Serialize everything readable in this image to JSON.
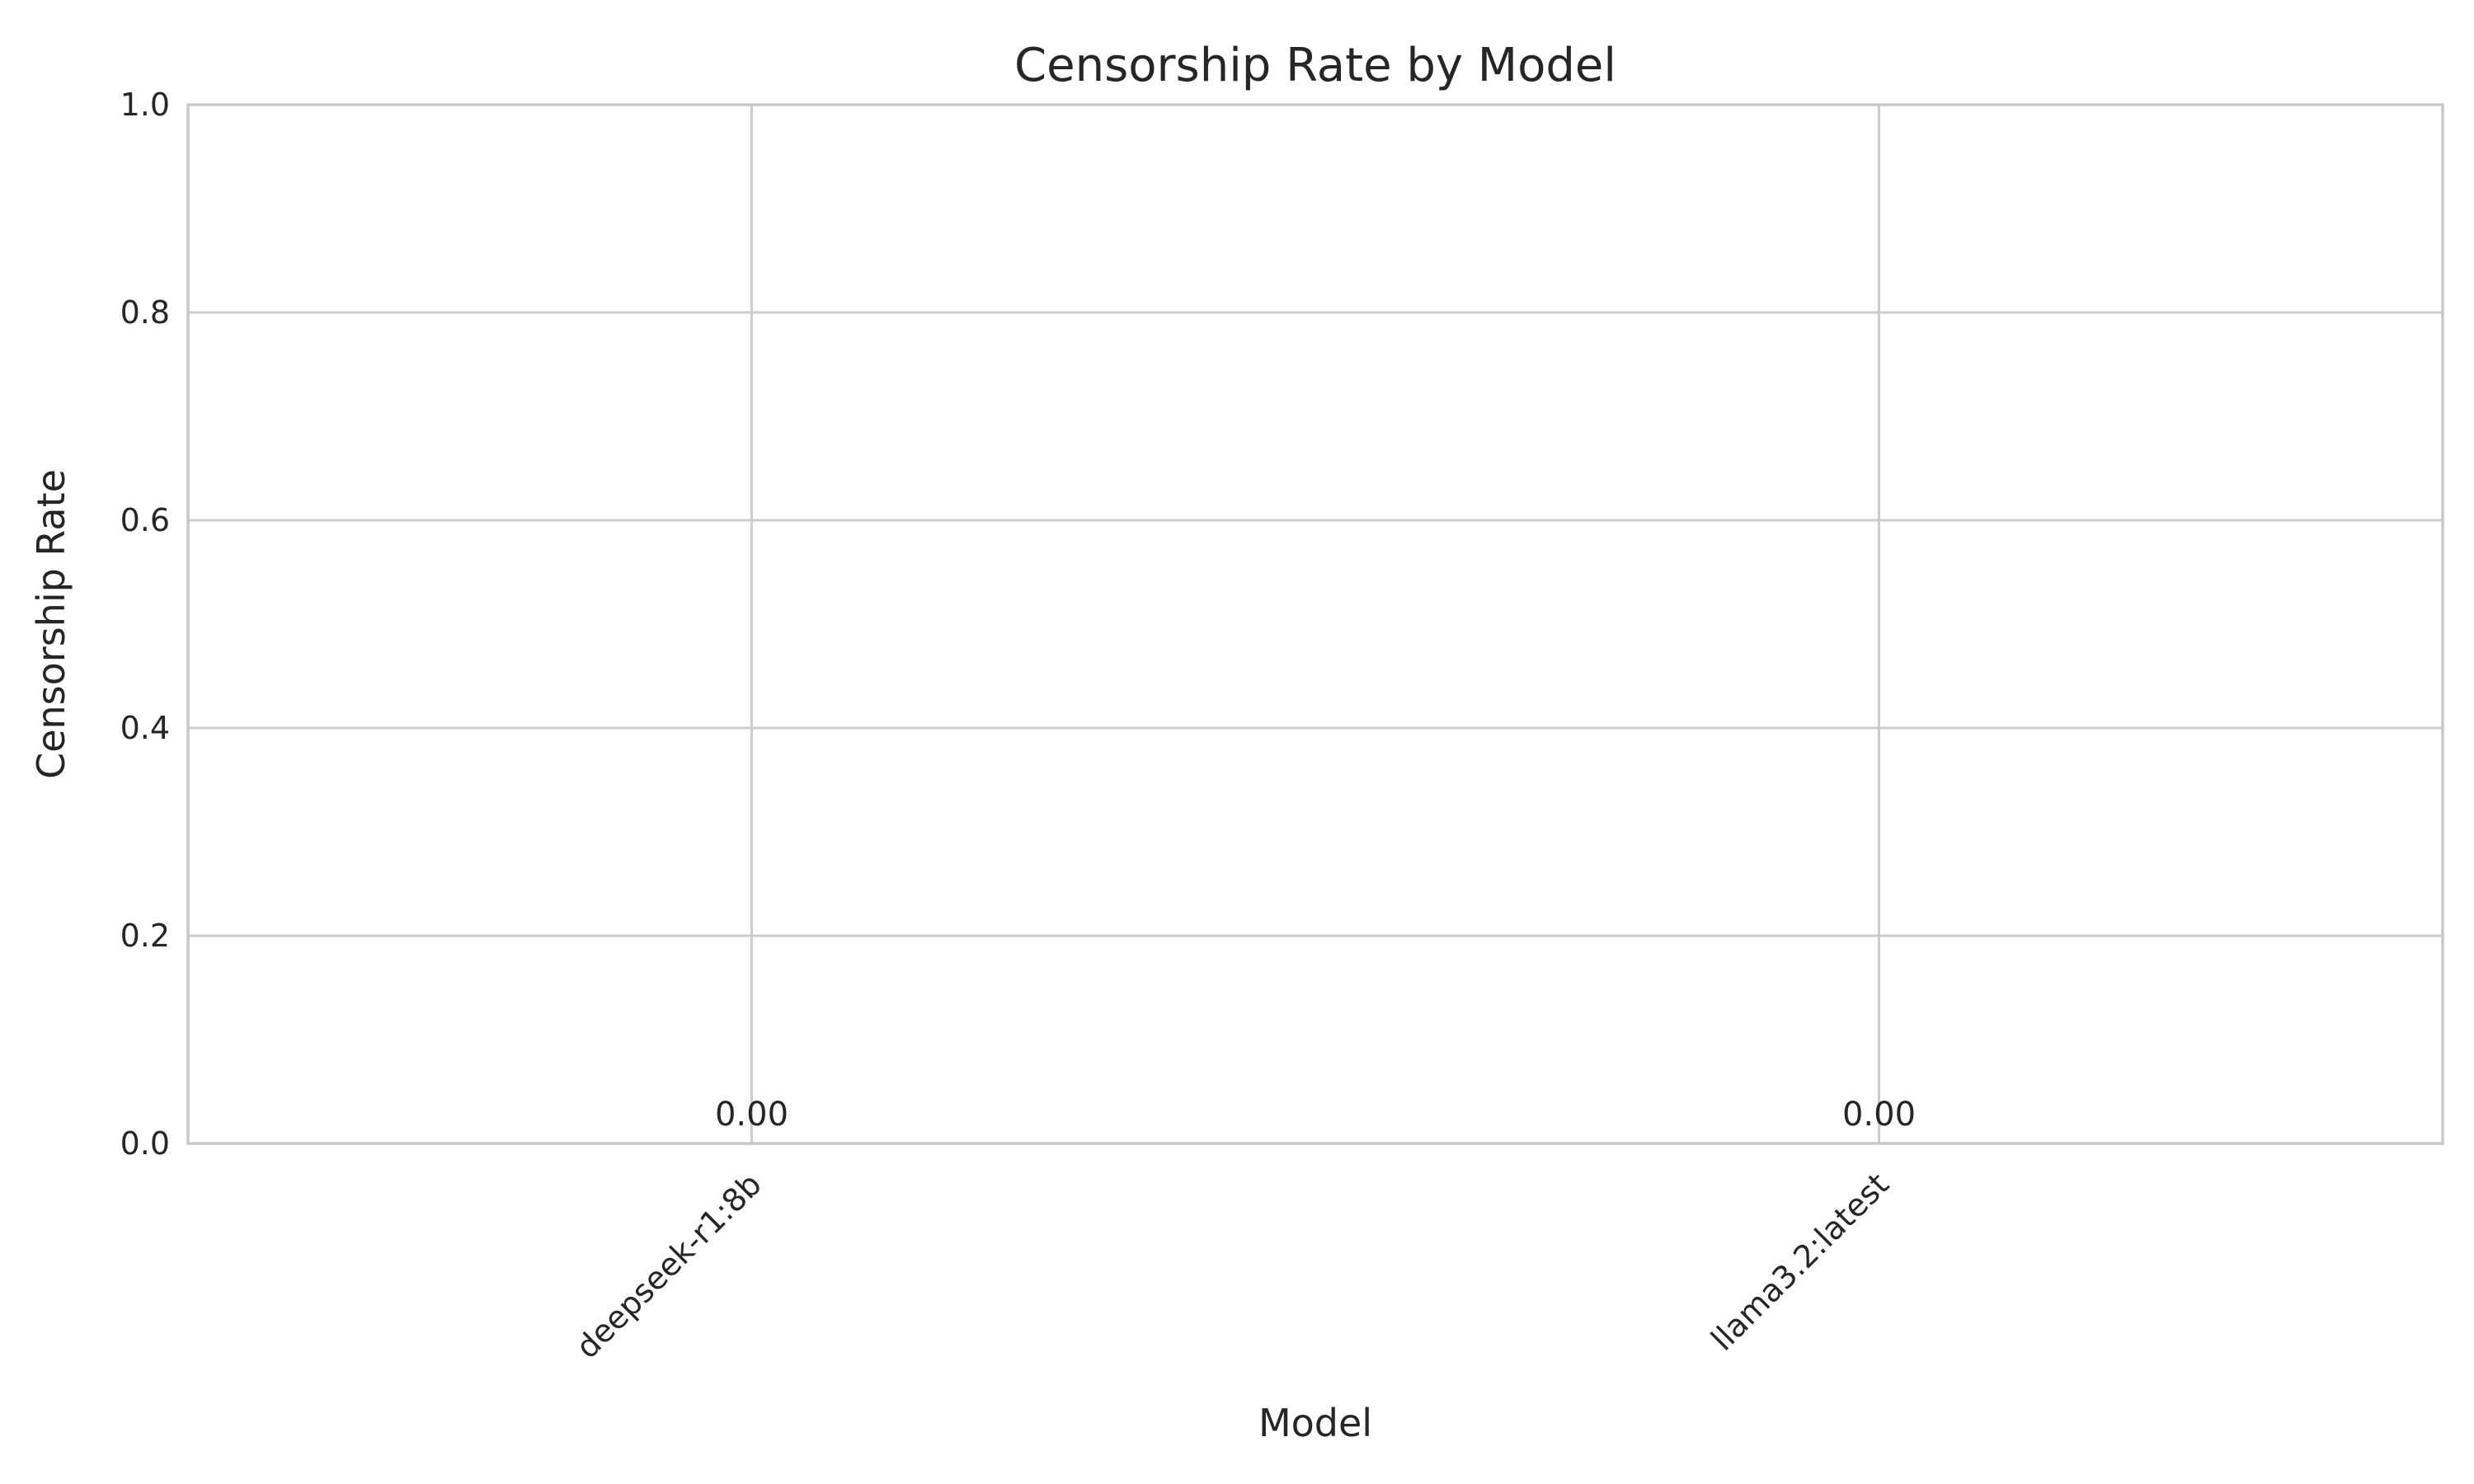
{
  "chart_data": {
    "type": "bar",
    "title": "Censorship Rate by Model",
    "xlabel": "Model",
    "ylabel": "Censorship Rate",
    "categories": [
      "deepseek-r1:8b",
      "llama3.2:latest"
    ],
    "values": [
      0.0,
      0.0
    ],
    "data_labels": [
      "0.00",
      "0.00"
    ],
    "ylim": [
      0,
      1.0
    ],
    "yticks": [
      "0.0",
      "0.2",
      "0.4",
      "0.6",
      "0.8",
      "1.0"
    ],
    "ytick_values": [
      0.0,
      0.2,
      0.4,
      0.6,
      0.8,
      1.0
    ],
    "grid": true,
    "legend": "none",
    "tick_rotation_x": -45,
    "colors": {
      "grid": "#cccccc",
      "frame": "#c8c8c8",
      "text": "#262626",
      "bar": "#4c72b0"
    }
  }
}
